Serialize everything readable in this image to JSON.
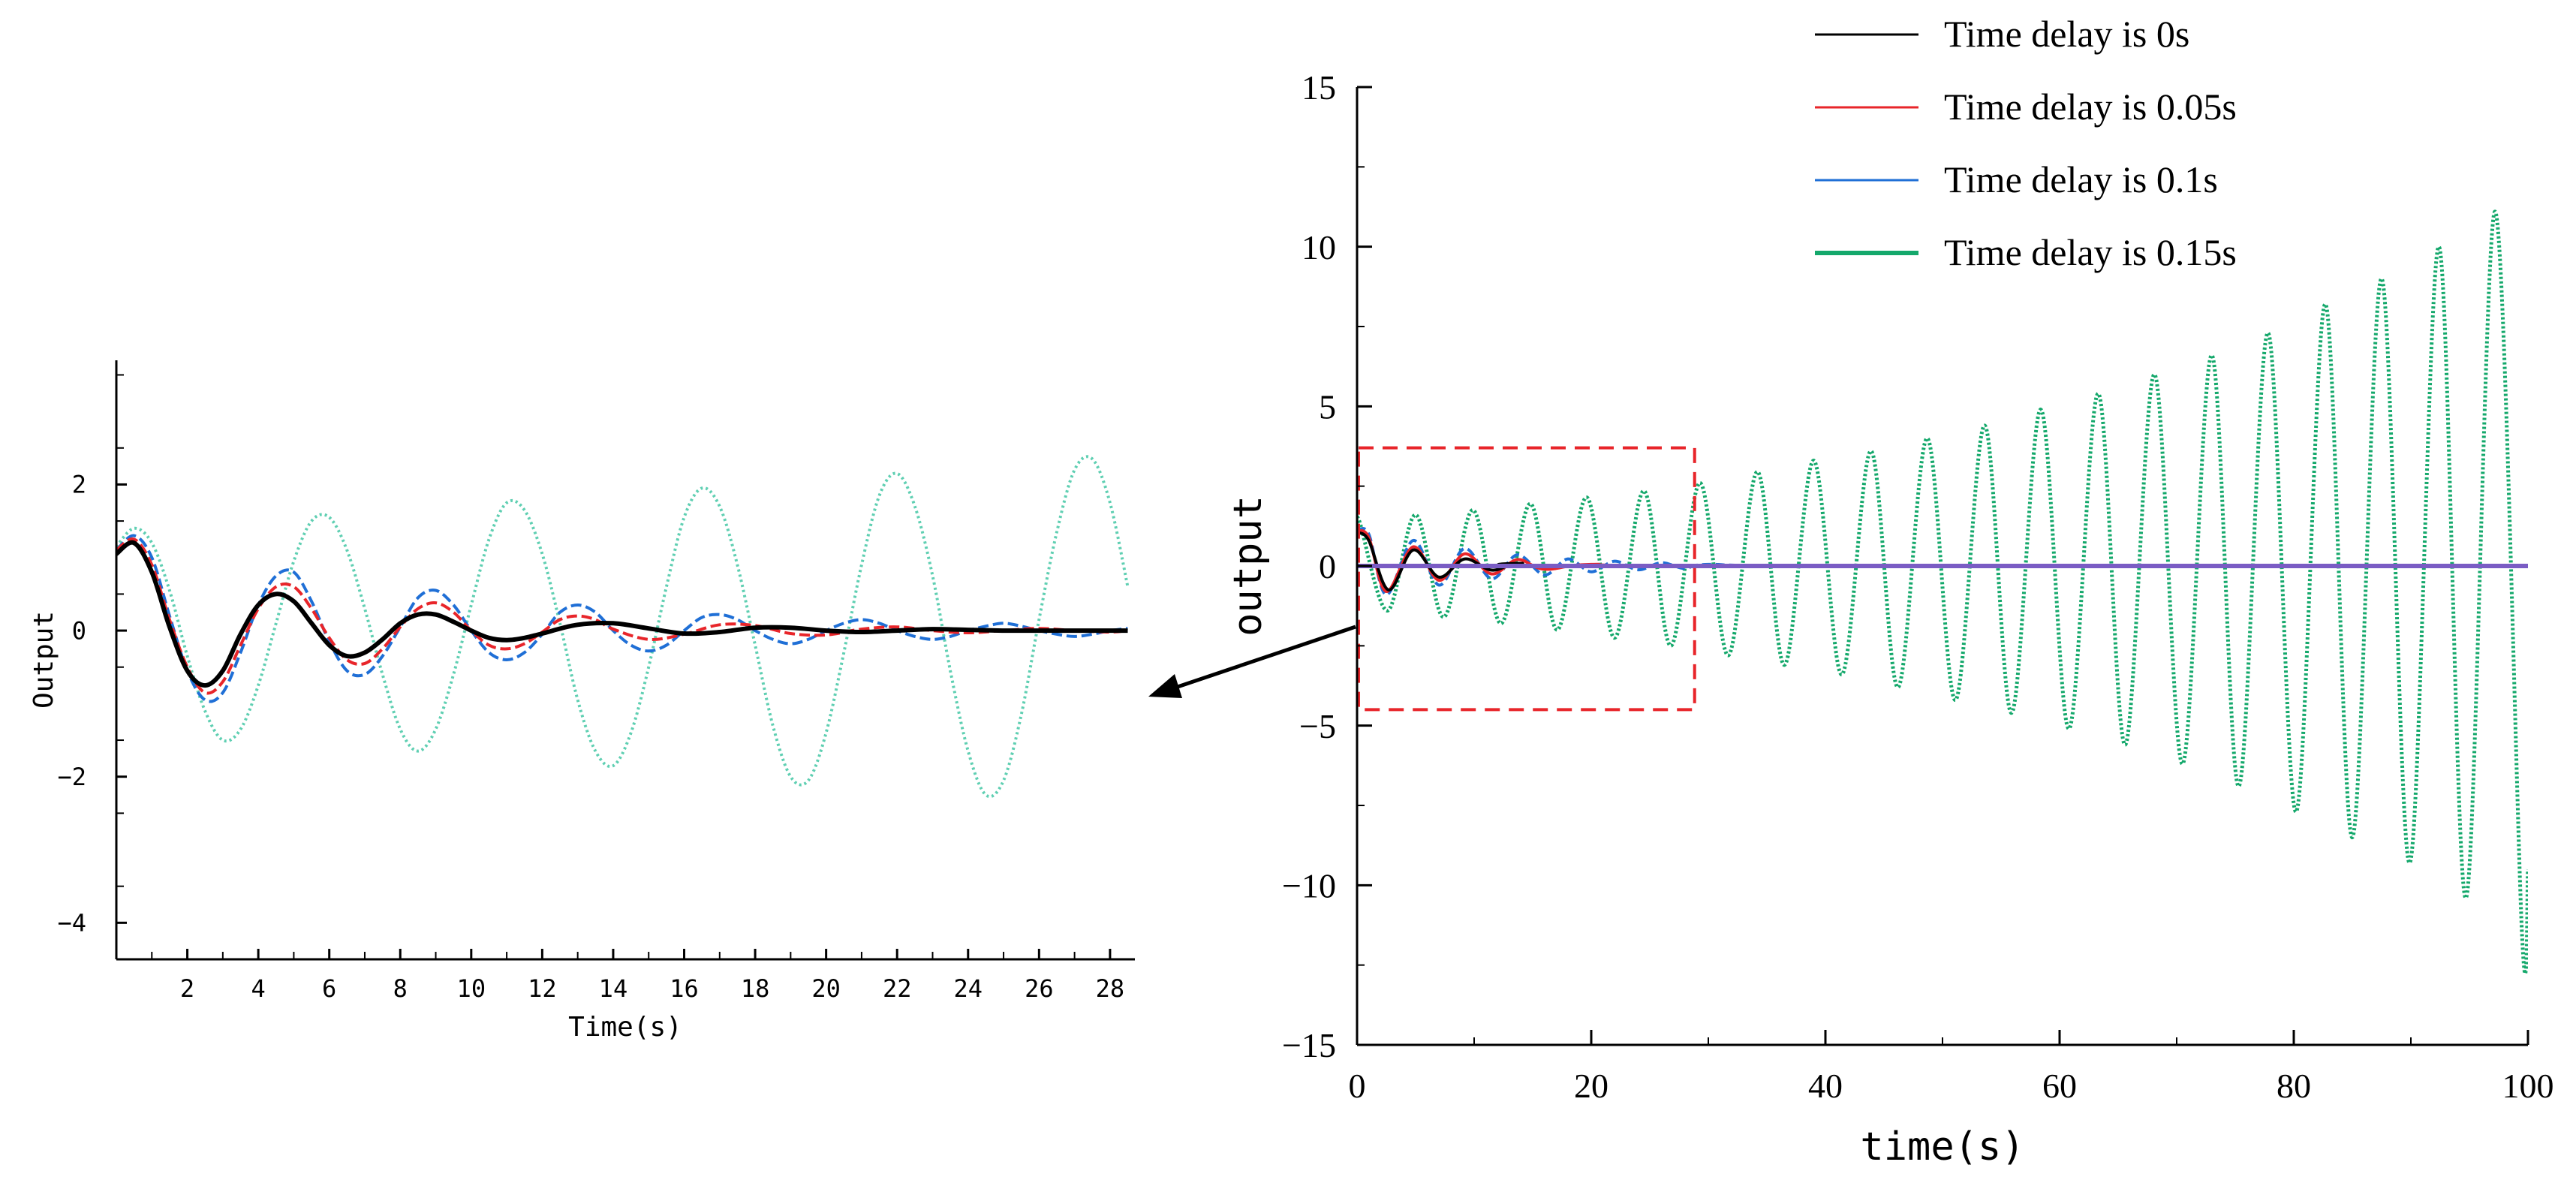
{
  "colors": {
    "delay_0s": "#000000",
    "delay_0_05s": "#e8252a",
    "delay_0_1s": "#1f6fd6",
    "delay_0_15s": "#14a86b",
    "delay_0_15s_zoom": "#5fcfb2",
    "zoom_box": "#e8252a",
    "axis": "#000000"
  },
  "legend": {
    "items": [
      {
        "label": "Time delay is 0s",
        "color_key": "delay_0s"
      },
      {
        "label": "Time delay is 0.05s",
        "color_key": "delay_0_05s"
      },
      {
        "label": "Time delay is 0.1s",
        "color_key": "delay_0_1s"
      },
      {
        "label": "Time delay is 0.15s",
        "color_key": "delay_0_15s"
      }
    ]
  },
  "chart_data": [
    {
      "id": "zoom",
      "type": "line",
      "xlabel": "Time(s)",
      "ylabel": "Output",
      "xlim": [
        0,
        28.7
      ],
      "ylim": [
        -4.5,
        3.7
      ],
      "xticks": [
        2,
        4,
        6,
        8,
        10,
        12,
        14,
        16,
        18,
        20,
        22,
        24,
        26,
        28
      ],
      "yticks": [
        -4,
        -2,
        0,
        2
      ],
      "x_minor_step": 1,
      "y_minor_step": 1,
      "series": [
        {
          "name": "Time delay is 0.15s",
          "color_key": "delay_0_15s_zoom",
          "style": "dotted",
          "x": [
            0,
            0.5,
            1,
            1.5,
            2,
            2.5,
            3,
            3.5,
            4,
            4.5,
            5,
            5.5,
            6,
            6.5,
            7,
            7.5,
            8,
            8.5,
            9,
            9.5,
            10,
            10.5,
            11,
            11.5,
            12,
            12.5,
            13,
            13.5,
            14,
            14.5,
            15,
            15.5,
            16,
            16.5,
            17,
            17.5,
            18,
            18.5,
            19,
            19.5,
            20,
            20.5,
            21,
            21.5,
            22,
            22.5,
            23,
            23.5,
            24,
            24.5,
            25,
            25.5,
            26,
            26.5,
            27,
            27.5,
            28,
            28.5
          ],
          "y": [
            1.15,
            1.4,
            1.2,
            0.55,
            -0.35,
            -1.1,
            -1.5,
            -1.35,
            -0.75,
            0.1,
            0.95,
            1.5,
            1.55,
            1.1,
            0.3,
            -0.6,
            -1.35,
            -1.65,
            -1.35,
            -0.6,
            0.35,
            1.25,
            1.75,
            1.65,
            1.05,
            0.1,
            -0.95,
            -1.65,
            -1.85,
            -1.4,
            -0.5,
            0.6,
            1.55,
            1.95,
            1.7,
            0.9,
            -0.2,
            -1.3,
            -2.0,
            -2.05,
            -1.4,
            -0.3,
            0.9,
            1.85,
            2.15,
            1.7,
            0.75,
            -0.55,
            -1.65,
            -2.25,
            -2.05,
            -1.15,
            0.15,
            1.35,
            2.2,
            2.35,
            1.75,
            0.6
          ]
        },
        {
          "name": "Time delay is 0.1s",
          "color_key": "delay_0_1s",
          "style": "dashed",
          "x": [
            0,
            0.5,
            1,
            1.5,
            2,
            2.5,
            3,
            3.5,
            4,
            4.5,
            5,
            5.5,
            6,
            6.5,
            7,
            7.5,
            8,
            8.5,
            9,
            9.5,
            10,
            10.5,
            11,
            11.5,
            12,
            12.5,
            13,
            13.5,
            14,
            14.5,
            15,
            15.5,
            16,
            16.5,
            17,
            17.5,
            18,
            18.5,
            19,
            19.5,
            20,
            20.5,
            21,
            21.5,
            22,
            22.5,
            23,
            23.5,
            24,
            24.5,
            25,
            25.5,
            26,
            26.5,
            27,
            27.5,
            28,
            28.5
          ],
          "y": [
            1.1,
            1.3,
            1.0,
            0.2,
            -0.55,
            -0.95,
            -0.85,
            -0.3,
            0.35,
            0.75,
            0.8,
            0.4,
            -0.15,
            -0.55,
            -0.6,
            -0.35,
            0.05,
            0.45,
            0.55,
            0.35,
            0.0,
            -0.3,
            -0.4,
            -0.3,
            -0.05,
            0.25,
            0.35,
            0.25,
            0.0,
            -0.2,
            -0.28,
            -0.2,
            0.0,
            0.18,
            0.22,
            0.15,
            0.0,
            -0.12,
            -0.18,
            -0.12,
            0.0,
            0.1,
            0.15,
            0.1,
            0.0,
            -0.08,
            -0.12,
            -0.08,
            0.0,
            0.06,
            0.1,
            0.06,
            0.0,
            -0.05,
            -0.08,
            -0.05,
            0.0,
            0.03
          ]
        },
        {
          "name": "Time delay is 0.05s",
          "color_key": "delay_0_05s",
          "style": "dashed",
          "x": [
            0,
            0.5,
            1,
            1.5,
            2,
            2.5,
            3,
            3.5,
            4,
            4.5,
            5,
            5.5,
            6,
            6.5,
            7,
            7.5,
            8,
            8.5,
            9,
            9.5,
            10,
            10.5,
            11,
            11.5,
            12,
            12.5,
            13,
            13.5,
            14,
            15,
            16,
            17,
            18,
            19,
            20,
            21,
            22,
            23,
            24,
            25,
            26,
            27,
            28,
            28.5
          ],
          "y": [
            1.1,
            1.25,
            0.9,
            0.15,
            -0.5,
            -0.85,
            -0.7,
            -0.2,
            0.3,
            0.6,
            0.6,
            0.3,
            -0.1,
            -0.4,
            -0.45,
            -0.25,
            0.05,
            0.3,
            0.38,
            0.25,
            0.0,
            -0.2,
            -0.25,
            -0.18,
            -0.02,
            0.15,
            0.2,
            0.15,
            0.02,
            -0.12,
            -0.05,
            0.08,
            0.07,
            -0.04,
            -0.06,
            0.02,
            0.05,
            0.0,
            -0.03,
            0.0,
            0.03,
            0.0,
            -0.02,
            0.0
          ]
        },
        {
          "name": "Time delay is 0s",
          "color_key": "delay_0s",
          "style": "solid",
          "x": [
            0,
            0.5,
            1,
            1.5,
            2,
            2.5,
            3,
            3.5,
            4,
            4.5,
            5,
            5.5,
            6,
            6.5,
            7,
            7.5,
            8,
            8.5,
            9,
            9.5,
            10,
            10.5,
            11,
            11.5,
            12,
            13,
            14,
            15,
            16,
            17,
            18,
            19,
            20,
            21,
            22,
            23,
            24,
            25,
            26,
            27,
            28,
            28.5
          ],
          "y": [
            1.05,
            1.2,
            0.8,
            0.05,
            -0.55,
            -0.75,
            -0.55,
            -0.05,
            0.35,
            0.5,
            0.4,
            0.1,
            -0.2,
            -0.35,
            -0.3,
            -0.12,
            0.1,
            0.22,
            0.22,
            0.12,
            0.0,
            -0.1,
            -0.13,
            -0.1,
            -0.04,
            0.08,
            0.1,
            0.03,
            -0.04,
            -0.02,
            0.04,
            0.04,
            0.0,
            -0.02,
            0.0,
            0.02,
            0.01,
            0.0,
            0.0,
            0.0,
            0.0,
            0.0
          ]
        }
      ]
    },
    {
      "id": "main",
      "type": "line",
      "xlabel": "time(s)",
      "ylabel": "output",
      "xlim": [
        0,
        100
      ],
      "ylim": [
        -15,
        15
      ],
      "xticks": [
        0,
        20,
        40,
        60,
        80,
        100
      ],
      "yticks": [
        -15,
        -10,
        -5,
        0,
        5,
        10,
        15
      ],
      "x_minor_step": 10,
      "y_minor_step": 2.5,
      "zoom_box": {
        "x": [
          0,
          28.7
        ],
        "y": [
          -4.5,
          3.7
        ]
      },
      "growing_series": {
        "name": "Time delay is 0.15s",
        "color_key": "delay_0_15s",
        "period_s": 4.85,
        "peak_t": [
          0.2,
          5.0,
          9.9,
          14.8,
          19.6,
          24.5,
          29.3,
          34.2,
          39.0,
          43.9,
          48.7,
          53.6,
          58.4,
          63.3,
          68.1,
          73.0,
          77.8,
          82.7,
          87.5,
          92.4,
          97.2
        ],
        "peak_y": [
          1.4,
          1.6,
          1.75,
          1.95,
          2.15,
          2.35,
          2.6,
          2.95,
          3.3,
          3.6,
          4.0,
          4.4,
          4.9,
          5.4,
          6.0,
          6.6,
          7.3,
          8.2,
          9.0,
          10.0,
          11.1
        ],
        "trough_t": [
          2.6,
          7.4,
          12.3,
          17.1,
          22.0,
          26.8,
          31.7,
          36.5,
          41.4,
          46.2,
          51.1,
          55.9,
          60.8,
          65.6,
          70.5,
          75.3,
          80.2,
          85.0,
          89.9,
          94.7,
          99.5
        ],
        "trough_y": [
          -1.4,
          -1.6,
          -1.8,
          -2.0,
          -2.25,
          -2.5,
          -2.8,
          -3.1,
          -3.4,
          -3.8,
          -4.2,
          -4.6,
          -5.1,
          -5.6,
          -6.2,
          -6.9,
          -7.7,
          -8.5,
          -9.3,
          -10.4,
          -11.6
        ]
      },
      "decaying_series": [
        {
          "name": "Time delay is 0.1s",
          "color_key": "delay_0_1s",
          "x": [
            0,
            1,
            2.5,
            4.8,
            7,
            9.2,
            11.5,
            13.7,
            16,
            18,
            20,
            22,
            24,
            26,
            28,
            30,
            40,
            100
          ],
          "y": [
            1.1,
            1.0,
            -0.9,
            0.8,
            -0.6,
            0.55,
            -0.4,
            0.35,
            -0.28,
            0.22,
            -0.18,
            0.15,
            -0.12,
            0.1,
            -0.08,
            0.05,
            0.0,
            0.0
          ]
        },
        {
          "name": "Time delay is 0.05s",
          "color_key": "delay_0_05s",
          "x": [
            0,
            1,
            2.5,
            4.8,
            7,
            9.2,
            11.5,
            13.7,
            16,
            20,
            30,
            100
          ],
          "y": [
            1.1,
            0.9,
            -0.8,
            0.6,
            -0.45,
            0.38,
            -0.25,
            0.2,
            -0.1,
            0.05,
            0.0,
            0.0
          ]
        },
        {
          "name": "Time delay is 0s",
          "color_key": "delay_0s",
          "x": [
            0,
            1,
            2.7,
            4.8,
            7,
            9.2,
            11.5,
            14,
            20,
            100
          ],
          "y": [
            1.05,
            0.8,
            -0.75,
            0.5,
            -0.35,
            0.22,
            -0.13,
            0.08,
            0.0,
            0.0
          ]
        },
        {
          "name": "",
          "color_key": "",
          "flat_purple": true,
          "x": [
            0,
            100
          ],
          "y": [
            0.0,
            0.0
          ]
        }
      ]
    }
  ]
}
